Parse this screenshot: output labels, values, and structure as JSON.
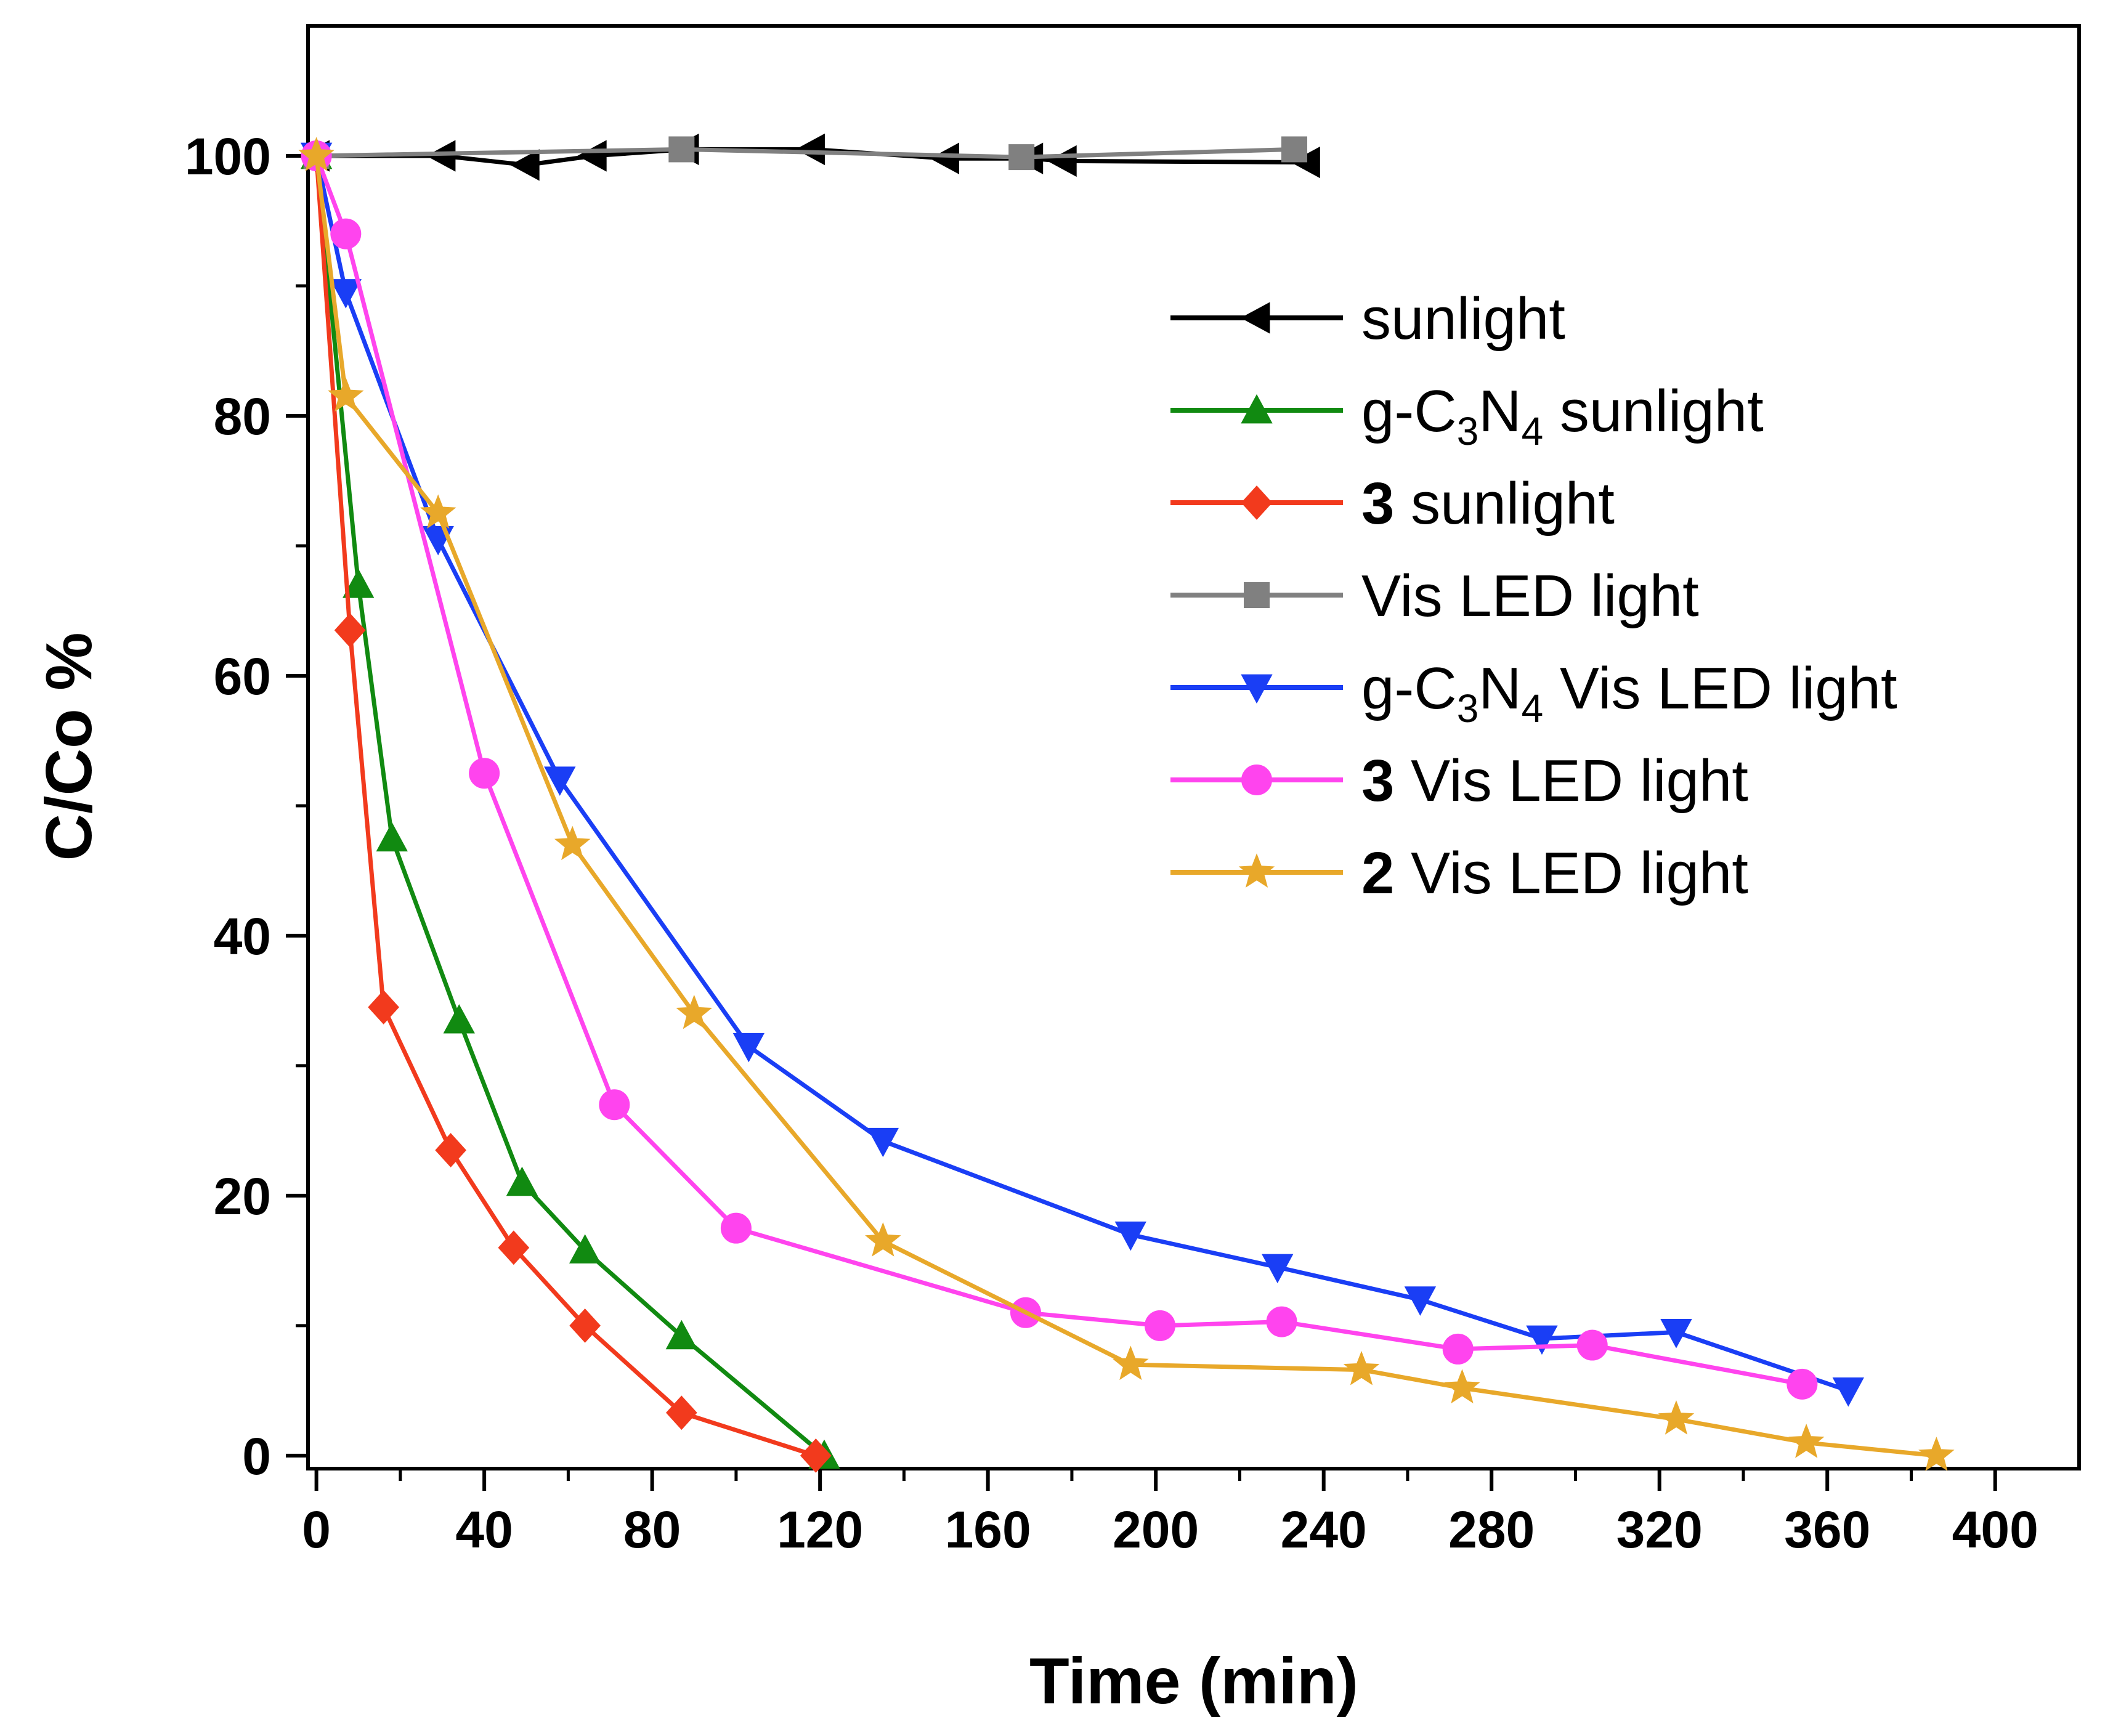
{
  "chart_data": {
    "type": "line",
    "title": "",
    "xlabel": "Time (min)",
    "ylabel": "C/Co %",
    "xlim": [
      -2,
      420
    ],
    "ylim": [
      -1,
      110
    ],
    "xticks": [
      0,
      40,
      80,
      120,
      160,
      200,
      240,
      280,
      320,
      360,
      400
    ],
    "xtick_labels": [
      "0",
      "40",
      "80",
      "120",
      "160",
      "200",
      "240",
      "280",
      "320",
      "360",
      "400"
    ],
    "yticks": [
      0,
      20,
      40,
      60,
      80,
      100
    ],
    "ytick_labels": [
      "0",
      "20",
      "40",
      "60",
      "80",
      "100"
    ],
    "legend_position": "top-right",
    "series": [
      {
        "id": "sunlight",
        "name": "sunlight",
        "legend": [
          {
            "text": "sunlight",
            "bold": false
          }
        ],
        "color": "#000000",
        "marker": "triangle-left",
        "x": [
          0,
          30,
          50,
          66,
          88,
          118,
          150,
          170,
          178,
          236
        ],
        "y": [
          100,
          100,
          99.3,
          100,
          100.5,
          100.5,
          99.8,
          99.8,
          99.6,
          99.5
        ]
      },
      {
        "id": "gc3n4-sunlight",
        "name": "g-C3N4 sunlight",
        "legend": [
          {
            "text": "g-C",
            "bold": false
          },
          {
            "text": "3",
            "sub": true
          },
          {
            "text": "N",
            "bold": false
          },
          {
            "text": "4",
            "sub": true
          },
          {
            "text": " sunlight",
            "bold": false
          }
        ],
        "color": "#118a11",
        "marker": "triangle-up",
        "x": [
          0,
          10,
          18,
          34,
          49,
          64,
          87,
          121
        ],
        "y": [
          100,
          67,
          47.5,
          33.5,
          21,
          15.8,
          9.2,
          0
        ]
      },
      {
        "id": "c3-sunlight",
        "name": "3 sunlight",
        "legend": [
          {
            "text": "3",
            "bold": true
          },
          {
            "text": " sunlight",
            "bold": false
          }
        ],
        "color": "#f23a1d",
        "marker": "diamond",
        "x": [
          0,
          8,
          16,
          32,
          47,
          64,
          87,
          119
        ],
        "y": [
          100,
          63.5,
          34.5,
          23.5,
          16,
          10,
          3.3,
          0
        ]
      },
      {
        "id": "vis-led",
        "name": "Vis LED light",
        "legend": [
          {
            "text": "Vis LED light",
            "bold": false
          }
        ],
        "color": "#808080",
        "marker": "square",
        "x": [
          0,
          87,
          168,
          233
        ],
        "y": [
          100,
          100.5,
          99.9,
          100.5
        ]
      },
      {
        "id": "gc3n4-vis-led",
        "name": "g-C3N4 Vis LED light",
        "legend": [
          {
            "text": "g-C",
            "bold": false
          },
          {
            "text": "3",
            "sub": true
          },
          {
            "text": "N",
            "bold": false
          },
          {
            "text": "4",
            "sub": true
          },
          {
            "text": " Vis LED light",
            "bold": false
          }
        ],
        "color": "#1a3ef5",
        "marker": "triangle-down",
        "x": [
          0,
          7,
          29,
          58,
          103,
          135,
          194,
          229,
          263,
          292,
          324,
          365
        ],
        "y": [
          100,
          89.5,
          70.5,
          52,
          31.5,
          24.2,
          17,
          14.5,
          12,
          9,
          9.5,
          5
        ]
      },
      {
        "id": "c3-vis-led",
        "name": "3 Vis LED light",
        "legend": [
          {
            "text": "3",
            "bold": true
          },
          {
            "text": " Vis LED light",
            "bold": false
          }
        ],
        "color": "#ff44ee",
        "marker": "circle",
        "x": [
          0,
          7,
          40,
          71,
          100,
          169,
          201,
          230,
          272,
          304,
          354
        ],
        "y": [
          100,
          94,
          52.5,
          27,
          17.5,
          11,
          10,
          10.3,
          8.2,
          8.5,
          5.5
        ]
      },
      {
        "id": "c2-vis-led",
        "name": "2 Vis LED light",
        "legend": [
          {
            "text": "2",
            "bold": true
          },
          {
            "text": " Vis LED light",
            "bold": false
          }
        ],
        "color": "#e8a82a",
        "marker": "star",
        "x": [
          0,
          7,
          29,
          61,
          90,
          135,
          194,
          249,
          273,
          324,
          355,
          386
        ],
        "y": [
          100,
          81.5,
          72.5,
          47,
          34,
          16.5,
          7,
          6.6,
          5.2,
          2.8,
          1,
          0
        ]
      }
    ]
  }
}
